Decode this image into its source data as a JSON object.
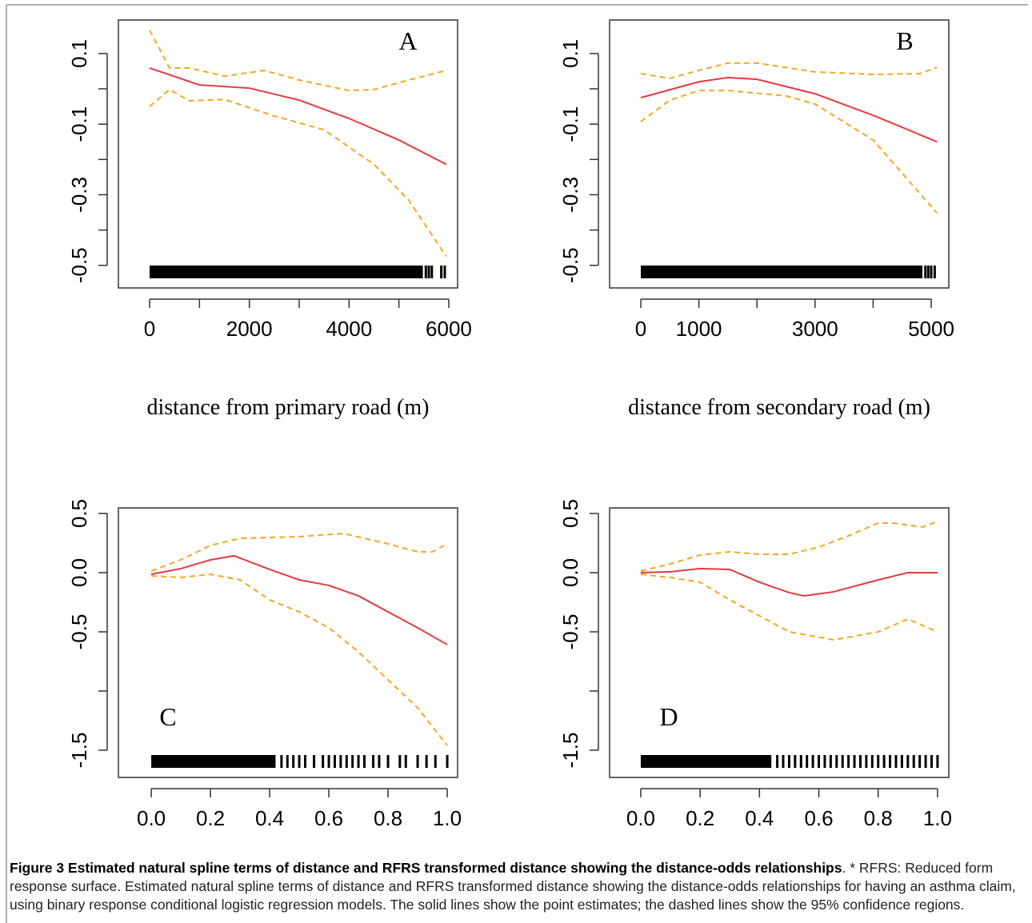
{
  "chart_data": [
    {
      "type": "line",
      "label": "A",
      "xlabel": "distance from primary road (m)",
      "xlim": [
        -626,
        6177
      ],
      "ylim": [
        -0.564,
        0.195
      ],
      "xticks": [
        0,
        2000,
        4000,
        6000
      ],
      "xticks_unlabeled": [
        1000,
        3000,
        5000
      ],
      "yticks": [
        0.1,
        -0.1,
        -0.3,
        -0.5
      ],
      "yticks_unlabeled": [
        0,
        -0.2,
        -0.4
      ],
      "series": [
        {
          "color": "#e8383d",
          "dash": false,
          "x": [
            0,
            1000,
            2000,
            3000,
            4000,
            5000,
            5950
          ],
          "values": [
            0.059,
            0.011,
            0.002,
            -0.032,
            -0.084,
            -0.145,
            -0.214
          ]
        },
        {
          "color": "#f5a623",
          "dash": true,
          "x": [
            0,
            400,
            800,
            1500,
            2300,
            3000,
            4000,
            4500,
            5200,
            5950
          ],
          "values": [
            0.166,
            0.059,
            0.059,
            0.036,
            0.052,
            0.025,
            -0.005,
            -0.002,
            0.025,
            0.052
          ]
        },
        {
          "color": "#f5a623",
          "dash": true,
          "x": [
            0,
            400,
            800,
            1500,
            2500,
            3500,
            4500,
            5200,
            5950
          ],
          "values": [
            -0.05,
            -0.002,
            -0.034,
            -0.03,
            -0.077,
            -0.116,
            -0.214,
            -0.316,
            -0.475
          ]
        }
      ],
      "rug_band": [
        0,
        5480
      ],
      "rug": [
        5540,
        5600,
        5660,
        5850,
        5920
      ]
    },
    {
      "type": "line",
      "label": "B",
      "xlabel": "distance from secondary road (m)",
      "xlim": [
        -537,
        5303
      ],
      "ylim": [
        -0.564,
        0.195
      ],
      "xticks": [
        0,
        1000,
        3000,
        5000
      ],
      "xticks_unlabeled": [
        2000,
        4000
      ],
      "yticks": [
        0.1,
        -0.1,
        -0.3,
        -0.5
      ],
      "yticks_unlabeled": [
        0,
        -0.2,
        -0.4
      ],
      "series": [
        {
          "color": "#e8383d",
          "dash": false,
          "x": [
            0,
            1000,
            1500,
            2000,
            3000,
            4000,
            5100
          ],
          "values": [
            -0.025,
            0.02,
            0.032,
            0.027,
            -0.014,
            -0.075,
            -0.15
          ]
        },
        {
          "color": "#f5a623",
          "dash": true,
          "x": [
            0,
            500,
            1000,
            1500,
            2000,
            3000,
            4000,
            4800,
            5100
          ],
          "values": [
            0.043,
            0.03,
            0.052,
            0.073,
            0.073,
            0.048,
            0.041,
            0.043,
            0.061
          ]
        },
        {
          "color": "#f5a623",
          "dash": true,
          "x": [
            0,
            500,
            1000,
            1500,
            2500,
            3000,
            4000,
            5100
          ],
          "values": [
            -0.093,
            -0.032,
            -0.005,
            -0.005,
            -0.02,
            -0.043,
            -0.145,
            -0.352
          ]
        }
      ],
      "rug_band": [
        0,
        4850
      ],
      "rug": [
        4900,
        4950,
        5000,
        5060
      ]
    },
    {
      "type": "line",
      "label": "C",
      "xlim": [
        -0.111,
        1.035
      ],
      "ylim": [
        -1.73,
        0.547
      ],
      "xticks": [
        {
          "value": 0,
          "label": "0.0"
        },
        0.2,
        0.4,
        0.6,
        0.8,
        {
          "value": 1,
          "label": "1.0"
        }
      ],
      "xticks_unlabeled": [],
      "yticks": [
        0.5,
        {
          "value": 0,
          "label": "0.0"
        },
        -0.5,
        -1.5
      ],
      "yticks_unlabeled": [
        -1
      ],
      "series": [
        {
          "color": "#e8383d",
          "dash": false,
          "x": [
            0,
            0.1,
            0.2,
            0.28,
            0.4,
            0.5,
            0.6,
            0.7,
            0.8,
            0.9,
            1.0
          ],
          "values": [
            -0.014,
            0.034,
            0.108,
            0.142,
            0.027,
            -0.061,
            -0.108,
            -0.196,
            -0.331,
            -0.466,
            -0.608
          ]
        },
        {
          "color": "#f5a623",
          "dash": true,
          "x": [
            0,
            0.1,
            0.2,
            0.3,
            0.5,
            0.65,
            0.8,
            0.9,
            0.95,
            1.0
          ],
          "values": [
            0.014,
            0.108,
            0.23,
            0.29,
            0.304,
            0.331,
            0.243,
            0.176,
            0.176,
            0.243
          ]
        },
        {
          "color": "#f5a623",
          "dash": true,
          "x": [
            0,
            0.1,
            0.2,
            0.3,
            0.4,
            0.5,
            0.6,
            0.7,
            0.8,
            0.9,
            1.0
          ],
          "values": [
            -0.027,
            -0.041,
            -0.014,
            -0.061,
            -0.23,
            -0.331,
            -0.466,
            -0.669,
            -0.905,
            -1.142,
            -1.459
          ]
        }
      ],
      "rug_band": [
        0,
        0.42
      ],
      "rug": [
        0.44,
        0.46,
        0.48,
        0.5,
        0.52,
        0.55,
        0.58,
        0.6,
        0.62,
        0.64,
        0.66,
        0.68,
        0.7,
        0.72,
        0.75,
        0.77,
        0.8,
        0.84,
        0.86,
        0.9,
        0.93,
        0.96,
        1.0
      ]
    },
    {
      "type": "line",
      "label": "D",
      "xlim": [
        -0.105,
        1.038
      ],
      "ylim": [
        -1.73,
        0.547
      ],
      "xticks": [
        {
          "value": 0,
          "label": "0.0"
        },
        0.2,
        0.4,
        0.6,
        0.8,
        {
          "value": 1,
          "label": "1.0"
        }
      ],
      "xticks_unlabeled": [],
      "yticks": [
        0.5,
        {
          "value": 0,
          "label": "0.0"
        },
        -0.5,
        -1.5
      ],
      "yticks_unlabeled": [
        -1
      ],
      "series": [
        {
          "color": "#e8383d",
          "dash": false,
          "x": [
            0,
            0.1,
            0.2,
            0.3,
            0.4,
            0.5,
            0.55,
            0.65,
            0.8,
            0.9,
            1.0
          ],
          "values": [
            0,
            0.007,
            0.034,
            0.027,
            -0.081,
            -0.169,
            -0.196,
            -0.162,
            -0.061,
            0,
            0
          ]
        },
        {
          "color": "#f5a623",
          "dash": true,
          "x": [
            0,
            0.1,
            0.2,
            0.3,
            0.4,
            0.5,
            0.6,
            0.7,
            0.8,
            0.85,
            0.95,
            1.0
          ],
          "values": [
            0.014,
            0.074,
            0.149,
            0.176,
            0.155,
            0.155,
            0.216,
            0.311,
            0.419,
            0.419,
            0.385,
            0.432
          ]
        },
        {
          "color": "#f5a623",
          "dash": true,
          "x": [
            0,
            0.1,
            0.2,
            0.3,
            0.4,
            0.5,
            0.65,
            0.8,
            0.9,
            1.0
          ],
          "values": [
            -0.014,
            -0.041,
            -0.081,
            -0.23,
            -0.365,
            -0.5,
            -0.568,
            -0.5,
            -0.392,
            -0.5
          ]
        }
      ],
      "rug_band": [
        0,
        0.44
      ],
      "rug": [
        0.46,
        0.48,
        0.5,
        0.52,
        0.54,
        0.56,
        0.58,
        0.6,
        0.62,
        0.64,
        0.66,
        0.68,
        0.7,
        0.72,
        0.74,
        0.76,
        0.78,
        0.8,
        0.82,
        0.84,
        0.86,
        0.88,
        0.9,
        0.92,
        0.94,
        0.96,
        0.98,
        1.0
      ]
    }
  ],
  "caption_bold": "Figure 3 Estimated natural spline terms of distance and RFRS transformed distance showing the distance-odds relationships",
  "caption_text": ". * RFRS: Reduced form response surface. Estimated natural spline terms of distance and RFRS transformed distance showing the distance-odds relationships for having an asthma claim, using binary response conditional logistic regression models. The solid lines show the point estimates; the dashed lines show the 95% confidence regions."
}
